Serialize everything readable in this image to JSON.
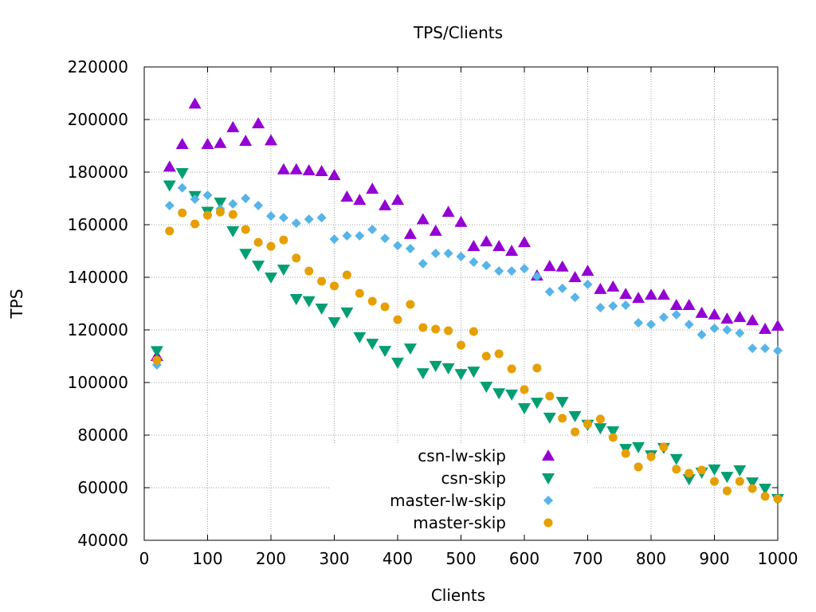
{
  "chart_data": {
    "type": "scatter",
    "title": "TPS/Clients",
    "xlabel": "Clients",
    "ylabel": "TPS",
    "xlim": [
      0,
      1000
    ],
    "ylim": [
      40000,
      220000
    ],
    "xticks": [
      0,
      100,
      200,
      300,
      400,
      500,
      600,
      700,
      800,
      900,
      1000
    ],
    "yticks": [
      40000,
      60000,
      80000,
      100000,
      120000,
      140000,
      160000,
      180000,
      200000,
      220000
    ],
    "grid": true,
    "legend_position": "bottom-right",
    "x": [
      20,
      40,
      60,
      80,
      100,
      120,
      140,
      160,
      180,
      200,
      220,
      240,
      260,
      280,
      300,
      320,
      340,
      360,
      380,
      400,
      420,
      440,
      460,
      480,
      500,
      520,
      540,
      560,
      580,
      600,
      620,
      640,
      660,
      680,
      700,
      720,
      740,
      760,
      780,
      800,
      820,
      840,
      860,
      880,
      900,
      920,
      940,
      960,
      980,
      1000
    ],
    "series": [
      {
        "name": "csn-lw-skip",
        "marker": "triangle-up",
        "color": "#9400d3",
        "values": [
          110000,
          182000,
          190600,
          206000,
          190600,
          191000,
          197000,
          191800,
          198500,
          192000,
          181000,
          181000,
          180600,
          180300,
          178800,
          170600,
          169400,
          173600,
          167300,
          169400,
          156400,
          162000,
          157600,
          164800,
          161000,
          151800,
          153600,
          151800,
          150000,
          153300,
          140600,
          144200,
          144000,
          140000,
          142400,
          135500,
          136400,
          133600,
          132100,
          133300,
          133300,
          129400,
          129400,
          126400,
          125800,
          124200,
          124800,
          123600,
          120300,
          121500
        ]
      },
      {
        "name": "csn-skip",
        "marker": "triangle-down",
        "color": "#009e73",
        "values": [
          112000,
          175000,
          179700,
          171000,
          165000,
          168500,
          157600,
          149000,
          144500,
          140000,
          143000,
          131800,
          131000,
          128200,
          123000,
          126700,
          117300,
          114800,
          112100,
          107600,
          113000,
          103600,
          106400,
          105500,
          103300,
          104200,
          98500,
          96000,
          95500,
          90300,
          92400,
          86700,
          92700,
          87300,
          84000,
          82700,
          81500,
          74800,
          75500,
          72400,
          75200,
          71000,
          63300,
          65800,
          67000,
          64200,
          66700,
          62100,
          59700,
          55800
        ]
      },
      {
        "name": "master-lw-skip",
        "marker": "diamond",
        "color": "#56b4e9",
        "values": [
          106700,
          167300,
          174000,
          169700,
          171200,
          166000,
          167900,
          170000,
          167300,
          163300,
          162700,
          160600,
          162100,
          162700,
          154500,
          155800,
          155800,
          158200,
          154800,
          152100,
          150900,
          145200,
          149100,
          149100,
          147900,
          145800,
          144500,
          142400,
          142400,
          143300,
          140300,
          134500,
          135800,
          132400,
          137300,
          128500,
          129100,
          129400,
          122700,
          122100,
          124800,
          125800,
          122100,
          118200,
          120600,
          120000,
          118800,
          113000,
          113000,
          112100
        ]
      },
      {
        "name": "master-skip",
        "marker": "circle",
        "color": "#e69f00",
        "values": [
          108500,
          157600,
          164500,
          160300,
          163600,
          164800,
          163900,
          158200,
          153300,
          151800,
          154200,
          147300,
          142400,
          138500,
          136700,
          140900,
          133900,
          130900,
          128800,
          123900,
          129700,
          120900,
          120300,
          119700,
          114200,
          119400,
          110000,
          110900,
          105200,
          97300,
          105500,
          94800,
          86400,
          81200,
          84200,
          86100,
          79100,
          73000,
          67900,
          71800,
          75500,
          67000,
          65500,
          66700,
          62400,
          58800,
          62400,
          59700,
          56700,
          55800
        ]
      }
    ]
  }
}
